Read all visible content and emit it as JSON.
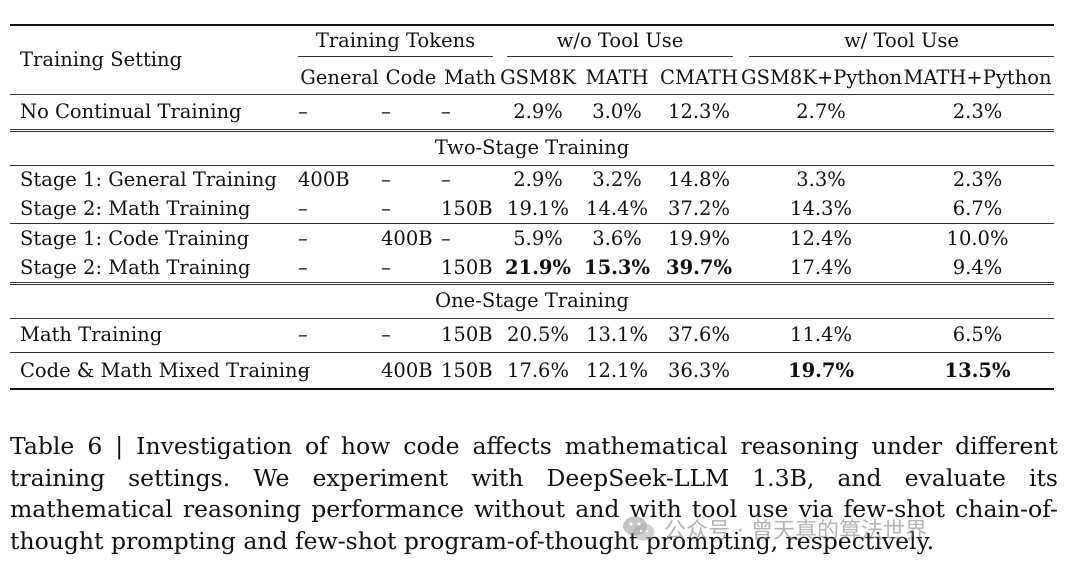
{
  "table": {
    "header": {
      "training_setting": "Training Setting",
      "training_tokens": "Training Tokens",
      "wo_tool_use": "w/o Tool Use",
      "w_tool_use": "w/ Tool Use",
      "general": "General",
      "code": "Code",
      "math": "Math",
      "gsm8k": "GSM8K",
      "math_bench": "MATH",
      "cmath": "CMATH",
      "gsm8k_python": "GSM8K+Python",
      "math_python": "MATH+Python"
    },
    "sections": {
      "two_stage": "Two-Stage Training",
      "one_stage": "One-Stage Training"
    },
    "rows": [
      {
        "setting": "No Continual Training",
        "general": "–",
        "code": "–",
        "math": "–",
        "gsm8k": "2.9%",
        "math_bench": "3.0%",
        "cmath": "12.3%",
        "gsm8k_python": "2.7%",
        "math_python": "2.3%"
      },
      {
        "setting": "Stage 1: General Training",
        "general": "400B",
        "code": "–",
        "math": "–",
        "gsm8k": "2.9%",
        "math_bench": "3.2%",
        "cmath": "14.8%",
        "gsm8k_python": "3.3%",
        "math_python": "2.3%"
      },
      {
        "setting": "Stage 2: Math Training",
        "general": "–",
        "code": "–",
        "math": "150B",
        "gsm8k": "19.1%",
        "math_bench": "14.4%",
        "cmath": "37.2%",
        "gsm8k_python": "14.3%",
        "math_python": "6.7%"
      },
      {
        "setting": "Stage 1: Code Training",
        "general": "–",
        "code": "400B",
        "math": "–",
        "gsm8k": "5.9%",
        "math_bench": "3.6%",
        "cmath": "19.9%",
        "gsm8k_python": "12.4%",
        "math_python": "10.0%"
      },
      {
        "setting": "Stage 2: Math Training",
        "general": "–",
        "code": "–",
        "math": "150B",
        "gsm8k": "21.9%",
        "math_bench": "15.3%",
        "cmath": "39.7%",
        "gsm8k_python": "17.4%",
        "math_python": "9.4%"
      },
      {
        "setting": "Math Training",
        "general": "–",
        "code": "–",
        "math": "150B",
        "gsm8k": "20.5%",
        "math_bench": "13.1%",
        "cmath": "37.6%",
        "gsm8k_python": "11.4%",
        "math_python": "6.5%"
      },
      {
        "setting": "Code & Math Mixed Training",
        "general": "–",
        "code": "400B",
        "math": "150B",
        "gsm8k": "17.6%",
        "math_bench": "12.1%",
        "cmath": "36.3%",
        "gsm8k_python": "19.7%",
        "math_python": "13.5%"
      }
    ]
  },
  "caption": "Table 6 | Investigation of how code affects mathematical reasoning under different training settings. We experiment with DeepSeek-LLM 1.3B, and evaluate its mathematical reasoning performance without and with tool use via few-shot chain-of-thought prompting and few-shot program-of-thought prompting, respectively.",
  "watermark": {
    "icon": "wechat-icon",
    "text": "公众号 · 曾天真的算法世界"
  }
}
